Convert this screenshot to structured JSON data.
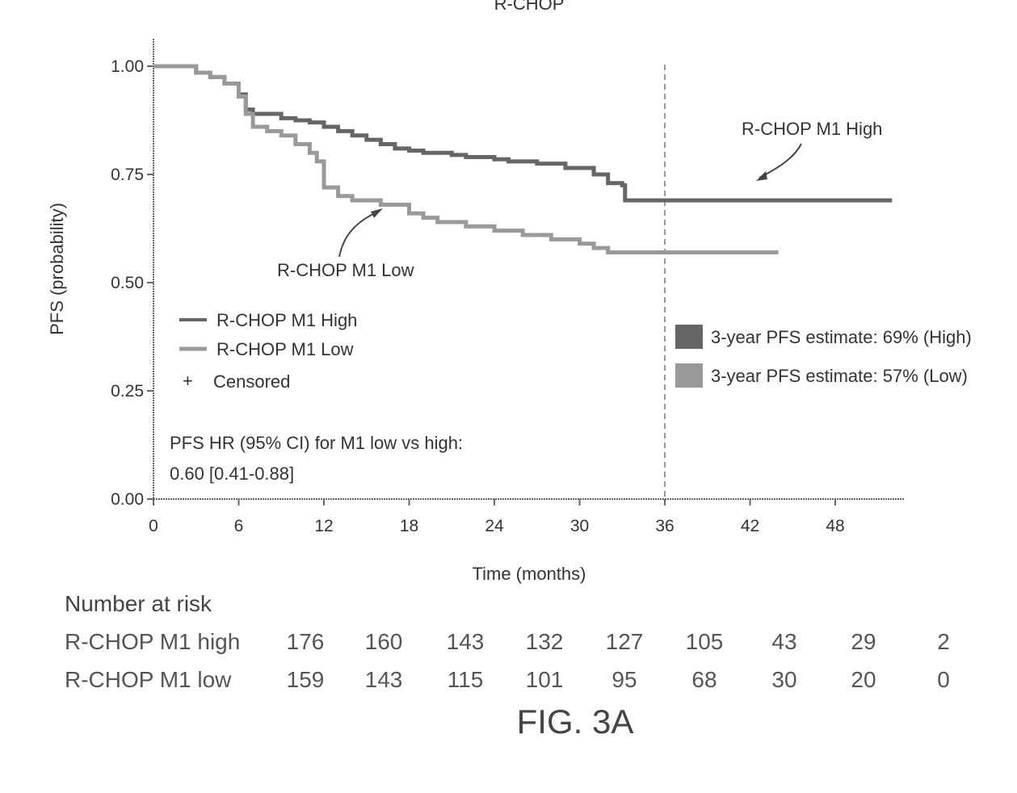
{
  "chart_data": {
    "type": "line",
    "title": "R-CHOP",
    "xlabel": "Time (months)",
    "ylabel": "PFS (probability)",
    "xlim": [
      0,
      52
    ],
    "ylim": [
      0,
      1
    ],
    "x_ticks": [
      0,
      6,
      12,
      18,
      24,
      30,
      36,
      42,
      48
    ],
    "y_ticks": [
      "0.00",
      "0.25",
      "0.50",
      "0.75",
      "1.00"
    ],
    "grid": false,
    "reference_line_x": 36,
    "series": [
      {
        "name": "R-CHOP M1 High",
        "color": "#666666",
        "points": [
          [
            0,
            1.0
          ],
          [
            2,
            1.0
          ],
          [
            3,
            0.985
          ],
          [
            4,
            0.975
          ],
          [
            5,
            0.96
          ],
          [
            6,
            0.935
          ],
          [
            6.5,
            0.9
          ],
          [
            7,
            0.89
          ],
          [
            8,
            0.89
          ],
          [
            9,
            0.88
          ],
          [
            10,
            0.875
          ],
          [
            11,
            0.87
          ],
          [
            12,
            0.86
          ],
          [
            13,
            0.85
          ],
          [
            14,
            0.84
          ],
          [
            15,
            0.83
          ],
          [
            16,
            0.82
          ],
          [
            17,
            0.81
          ],
          [
            18,
            0.805
          ],
          [
            19,
            0.8
          ],
          [
            20,
            0.8
          ],
          [
            21,
            0.795
          ],
          [
            22,
            0.79
          ],
          [
            23,
            0.79
          ],
          [
            24,
            0.785
          ],
          [
            25,
            0.78
          ],
          [
            26,
            0.78
          ],
          [
            27,
            0.775
          ],
          [
            28,
            0.775
          ],
          [
            29,
            0.765
          ],
          [
            30,
            0.765
          ],
          [
            31,
            0.75
          ],
          [
            32,
            0.73
          ],
          [
            33,
            0.725
          ],
          [
            33.2,
            0.69
          ],
          [
            36,
            0.69
          ],
          [
            44,
            0.69
          ],
          [
            52,
            0.69
          ]
        ]
      },
      {
        "name": "R-CHOP M1 Low",
        "color": "#999999",
        "points": [
          [
            0,
            1.0
          ],
          [
            2,
            1.0
          ],
          [
            3,
            0.985
          ],
          [
            4,
            0.975
          ],
          [
            5,
            0.96
          ],
          [
            6,
            0.93
          ],
          [
            6.5,
            0.89
          ],
          [
            7,
            0.86
          ],
          [
            8,
            0.85
          ],
          [
            9,
            0.84
          ],
          [
            10,
            0.82
          ],
          [
            11,
            0.8
          ],
          [
            11.5,
            0.78
          ],
          [
            12,
            0.72
          ],
          [
            13,
            0.7
          ],
          [
            14,
            0.69
          ],
          [
            16,
            0.68
          ],
          [
            18,
            0.66
          ],
          [
            19,
            0.65
          ],
          [
            20,
            0.64
          ],
          [
            22,
            0.63
          ],
          [
            24,
            0.62
          ],
          [
            26,
            0.61
          ],
          [
            28,
            0.6
          ],
          [
            30,
            0.59
          ],
          [
            31,
            0.58
          ],
          [
            32,
            0.57
          ],
          [
            36,
            0.57
          ],
          [
            42,
            0.57
          ],
          [
            44,
            0.57
          ]
        ]
      }
    ],
    "annotations": {
      "high_label": "R-CHOP M1 High",
      "low_label": "R-CHOP M1 Low"
    },
    "legend": {
      "placement": "middle-left",
      "items": [
        "R-CHOP M1 High",
        "R-CHOP M1 Low",
        "Censored"
      ]
    },
    "estimates": [
      {
        "text": "3-year PFS estimate: 69% (High)",
        "color": "#666666"
      },
      {
        "text": "3-year PFS estimate: 57% (Low)",
        "color": "#999999"
      }
    ],
    "hr_text": {
      "line1": "PFS HR (95% CI) for M1 low vs high:",
      "line2": "0.60 [0.41-0.88]"
    },
    "number_at_risk": {
      "title": "Number at risk",
      "rows": [
        {
          "label": "R-CHOP M1 high",
          "values": [
            "176",
            "160",
            "143",
            "132",
            "127",
            "105",
            "43",
            "29",
            "2"
          ]
        },
        {
          "label": "R-CHOP M1 low",
          "values": [
            "159",
            "143",
            "115",
            "101",
            "95",
            "68",
            "30",
            "20",
            "0"
          ]
        }
      ]
    }
  },
  "caption": "FIG. 3A"
}
